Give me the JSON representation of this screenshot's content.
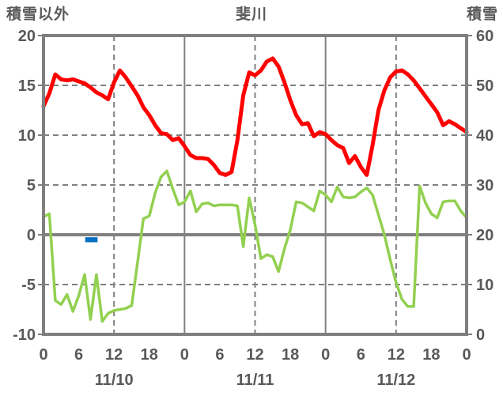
{
  "chart_data": {
    "type": "line",
    "title": "斐川",
    "left_axis": {
      "label": "積雪以外",
      "min": -10,
      "max": 20,
      "ticks": [
        20,
        15,
        10,
        5,
        0,
        -5,
        -10
      ]
    },
    "right_axis": {
      "label": "積雪",
      "min": 0,
      "max": 60,
      "ticks": [
        60,
        50,
        40,
        30,
        20,
        10,
        0
      ]
    },
    "x_axis": {
      "unit": "hour",
      "min_hour": 0,
      "max_hour": 72,
      "tick_interval_hours": 6,
      "tick_labels": [
        "0",
        "6",
        "12",
        "18",
        "0",
        "6",
        "12",
        "18",
        "0",
        "6",
        "12",
        "18",
        "0"
      ],
      "date_labels": [
        "11/10",
        "11/11",
        "11/12"
      ],
      "date_label_center_hours": [
        12,
        36,
        60
      ]
    },
    "gridlines": {
      "horizontal_dashed_at": [
        15,
        10,
        5,
        -5
      ],
      "horizontal_solid_at": [
        0
      ],
      "vertical_dashed_at_hours": [
        12,
        36,
        60
      ],
      "vertical_solid_at_hours": [
        24,
        48
      ]
    },
    "series": [
      {
        "name": "red-line",
        "color": "#FF0000",
        "axis": "left",
        "x_start_hour": 0,
        "x_step_hours": 1,
        "values": [
          12.9,
          14.2,
          16.1,
          15.6,
          15.5,
          15.6,
          15.4,
          15.2,
          14.8,
          14.3,
          14.0,
          13.6,
          15.3,
          16.5,
          15.8,
          14.9,
          14.0,
          12.8,
          12.0,
          11.0,
          10.2,
          10.1,
          9.5,
          9.7,
          8.9,
          8.0,
          7.7,
          7.7,
          7.6,
          7.0,
          6.2,
          6.0,
          6.3,
          9.5,
          14.0,
          16.3,
          16.0,
          16.5,
          17.4,
          17.7,
          16.9,
          15.3,
          13.5,
          12.0,
          11.1,
          11.2,
          9.9,
          10.3,
          10.1,
          9.5,
          9.0,
          8.7,
          7.2,
          7.9,
          6.8,
          6.0,
          9.0,
          12.5,
          14.5,
          15.8,
          16.4,
          16.5,
          16.1,
          15.5,
          14.7,
          13.9,
          13.1,
          12.3,
          11.0,
          11.4,
          11.1,
          10.7,
          10.3
        ]
      },
      {
        "name": "green-line",
        "color": "#92D050",
        "axis": "left",
        "x_start_hour": 0,
        "x_step_hours": 1,
        "values": [
          1.8,
          2.1,
          -6.6,
          -7.0,
          -6.0,
          -7.7,
          -6.1,
          -4.0,
          -8.5,
          -4.0,
          -8.7,
          -7.9,
          -7.6,
          -7.5,
          -7.4,
          -7.1,
          -2.8,
          1.6,
          1.9,
          4.2,
          5.8,
          6.4,
          4.6,
          3.0,
          3.3,
          4.4,
          2.3,
          3.1,
          3.2,
          2.9,
          3.0,
          3.0,
          3.0,
          2.9,
          -1.2,
          3.7,
          1.0,
          -2.4,
          -2.0,
          -2.2,
          -3.7,
          -1.4,
          0.5,
          3.3,
          3.2,
          2.8,
          2.4,
          4.4,
          4.0,
          3.3,
          4.8,
          3.8,
          3.7,
          3.8,
          4.3,
          4.7,
          4.0,
          2.0,
          0.0,
          -2.5,
          -4.8,
          -6.5,
          -7.2,
          -7.2,
          4.9,
          3.2,
          2.1,
          1.7,
          3.3,
          3.4,
          3.4,
          2.4,
          1.7
        ]
      }
    ],
    "bar": {
      "name": "blue-bar",
      "color": "#0070C0",
      "axis": "left",
      "x_start_hour": 7.1,
      "x_end_hour": 9.2,
      "value_top": -0.25,
      "value_bottom": -0.75
    },
    "style": {
      "frame_color": "#7F7F7F",
      "grid_color": "#808080",
      "label_color": "#595959",
      "background": "#FFFFFF"
    }
  }
}
